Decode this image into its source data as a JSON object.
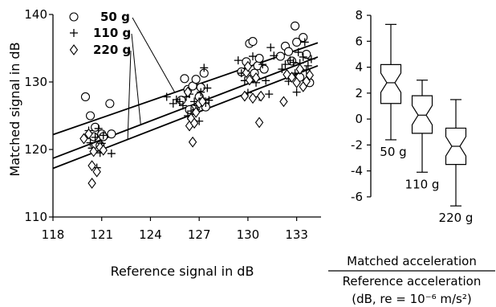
{
  "chart_data": [
    {
      "type": "scatter",
      "title": "",
      "xlabel": "Reference signal in dB",
      "ylabel": "Matched signal in dB",
      "xlim": [
        118,
        134.5
      ],
      "ylim": [
        110,
        140
      ],
      "xticks": [
        "118",
        "121",
        "124",
        "127",
        "130",
        "133"
      ],
      "yticks": [
        "110",
        "120",
        "130",
        "140"
      ],
      "grid": false,
      "legend": {
        "placement": "top-left",
        "entries": [
          {
            "symbol": "circle",
            "label": "50 g"
          },
          {
            "symbol": "plus",
            "label": "110 g"
          },
          {
            "symbol": "diamond",
            "label": "220 g"
          }
        ]
      },
      "series": [
        {
          "name": "50 g",
          "marker": "circle",
          "fit": {
            "x": [
              118,
              134.3
            ],
            "y": [
              122.2,
              135.8
            ]
          },
          "points": [
            [
              120.0,
              127.8
            ],
            [
              120.3,
              125.0
            ],
            [
              120.5,
              121.9
            ],
            [
              120.6,
              123.3
            ],
            [
              120.9,
              120.6
            ],
            [
              121.0,
              122.3
            ],
            [
              121.1,
              121.9
            ],
            [
              121.5,
              126.8
            ],
            [
              121.6,
              122.3
            ],
            [
              125.9,
              127.3
            ],
            [
              126.1,
              130.5
            ],
            [
              126.3,
              128.9
            ],
            [
              126.4,
              125.9
            ],
            [
              126.6,
              129.4
            ],
            [
              126.8,
              130.4
            ],
            [
              127.0,
              127.8
            ],
            [
              127.1,
              129.2
            ],
            [
              127.3,
              131.3
            ],
            [
              127.4,
              126.3
            ],
            [
              129.6,
              131.5
            ],
            [
              129.9,
              133.0
            ],
            [
              130.1,
              135.7
            ],
            [
              130.3,
              136.0
            ],
            [
              130.4,
              131.3
            ],
            [
              130.6,
              132.4
            ],
            [
              130.7,
              133.5
            ],
            [
              131.0,
              131.9
            ],
            [
              132.0,
              133.8
            ],
            [
              132.3,
              135.3
            ],
            [
              132.5,
              134.5
            ],
            [
              132.7,
              133.1
            ],
            [
              132.9,
              138.3
            ],
            [
              133.0,
              135.9
            ],
            [
              133.2,
              130.7
            ],
            [
              133.4,
              136.6
            ],
            [
              133.6,
              134.1
            ],
            [
              133.8,
              129.9
            ]
          ]
        },
        {
          "name": "110 g",
          "marker": "plus",
          "fit": {
            "x": [
              118,
              134.3
            ],
            "y": [
              118.7,
              133.7
            ]
          },
          "points": [
            [
              120.2,
              122.8
            ],
            [
              120.3,
              121.0
            ],
            [
              120.4,
              120.2
            ],
            [
              120.6,
              121.8
            ],
            [
              120.8,
              123.1
            ],
            [
              120.9,
              119.5
            ],
            [
              121.0,
              120.9
            ],
            [
              121.1,
              122.1
            ],
            [
              121.6,
              119.4
            ],
            [
              120.7,
              117.3
            ],
            [
              125.0,
              127.8
            ],
            [
              125.4,
              126.8
            ],
            [
              125.6,
              127.4
            ],
            [
              125.8,
              127.1
            ],
            [
              126.0,
              126.5
            ],
            [
              126.2,
              127.8
            ],
            [
              126.3,
              125.0
            ],
            [
              126.4,
              128.2
            ],
            [
              126.5,
              125.7
            ],
            [
              126.6,
              124.3
            ],
            [
              126.7,
              127.1
            ],
            [
              126.8,
              125.9
            ],
            [
              126.9,
              126.5
            ],
            [
              127.0,
              124.2
            ],
            [
              127.1,
              128.5
            ],
            [
              127.2,
              127.6
            ],
            [
              127.3,
              132.1
            ],
            [
              127.4,
              126.9
            ],
            [
              127.5,
              129.1
            ],
            [
              127.6,
              127.3
            ],
            [
              129.4,
              133.2
            ],
            [
              129.6,
              131.3
            ],
            [
              129.8,
              130.2
            ],
            [
              130.0,
              128.4
            ],
            [
              130.3,
              133.8
            ],
            [
              130.5,
              129.9
            ],
            [
              130.7,
              127.8
            ],
            [
              130.9,
              132.6
            ],
            [
              131.1,
              130.2
            ],
            [
              131.3,
              128.2
            ],
            [
              131.4,
              135.1
            ],
            [
              131.6,
              133.9
            ],
            [
              132.1,
              131.9
            ],
            [
              132.3,
              132.6
            ],
            [
              132.5,
              130.1
            ],
            [
              132.6,
              133.2
            ],
            [
              132.8,
              132.9
            ],
            [
              132.9,
              131.3
            ],
            [
              133.0,
              128.5
            ],
            [
              133.1,
              134.4
            ],
            [
              133.2,
              132.8
            ],
            [
              133.4,
              133.7
            ],
            [
              133.5,
              135.9
            ],
            [
              133.6,
              131.8
            ],
            [
              133.7,
              132.4
            ],
            [
              133.9,
              133.4
            ]
          ]
        },
        {
          "name": "220 g",
          "marker": "diamond",
          "fit": {
            "x": [
              118,
              134.3
            ],
            "y": [
              117.2,
              132.4
            ]
          },
          "points": [
            [
              119.9,
              121.6
            ],
            [
              120.2,
              122.3
            ],
            [
              120.4,
              117.6
            ],
            [
              120.4,
              115.0
            ],
            [
              120.5,
              119.7
            ],
            [
              120.7,
              116.7
            ],
            [
              120.9,
              120.3
            ],
            [
              121.1,
              119.9
            ],
            [
              126.3,
              128.5
            ],
            [
              126.4,
              123.5
            ],
            [
              126.5,
              124.6
            ],
            [
              126.6,
              121.1
            ],
            [
              126.7,
              123.9
            ],
            [
              126.8,
              125.5
            ],
            [
              127.0,
              126.8
            ],
            [
              127.2,
              127.1
            ],
            [
              129.8,
              127.9
            ],
            [
              129.9,
              131.4
            ],
            [
              130.0,
              132.3
            ],
            [
              130.1,
              130.3
            ],
            [
              130.3,
              127.6
            ],
            [
              130.5,
              130.6
            ],
            [
              130.7,
              124.0
            ],
            [
              130.8,
              127.9
            ],
            [
              132.2,
              127.1
            ],
            [
              132.4,
              131.1
            ],
            [
              132.7,
              130.7
            ],
            [
              133.0,
              129.9
            ],
            [
              133.2,
              131.9
            ],
            [
              133.4,
              129.3
            ],
            [
              133.6,
              130.1
            ],
            [
              133.8,
              131.0
            ]
          ]
        }
      ]
    },
    {
      "type": "box",
      "title": "",
      "xlabel": "",
      "ylabel_lines": [
        "Matched acceleration",
        "Reference acceleration",
        "(dB, re = 10⁻⁶ m/s²)"
      ],
      "ylim": [
        -6.5,
        8.5
      ],
      "yticks": [
        "8",
        "6",
        "4",
        "2",
        "0",
        "-2",
        "-4",
        "-6"
      ],
      "categories": [
        "50 g",
        "110 g",
        "220 g"
      ],
      "boxes": [
        {
          "label": "50 g",
          "whisker_low": -1.6,
          "q1": 1.2,
          "median": 2.8,
          "q3": 4.2,
          "whisker_high": 7.3
        },
        {
          "label": "110 g",
          "whisker_low": -4.1,
          "q1": -1.1,
          "median": 0.3,
          "q3": 1.8,
          "whisker_high": 3.0
        },
        {
          "label": "220 g",
          "whisker_low": -6.7,
          "q1": -3.5,
          "median": -2.1,
          "q3": -0.7,
          "whisker_high": 1.5
        }
      ]
    }
  ]
}
